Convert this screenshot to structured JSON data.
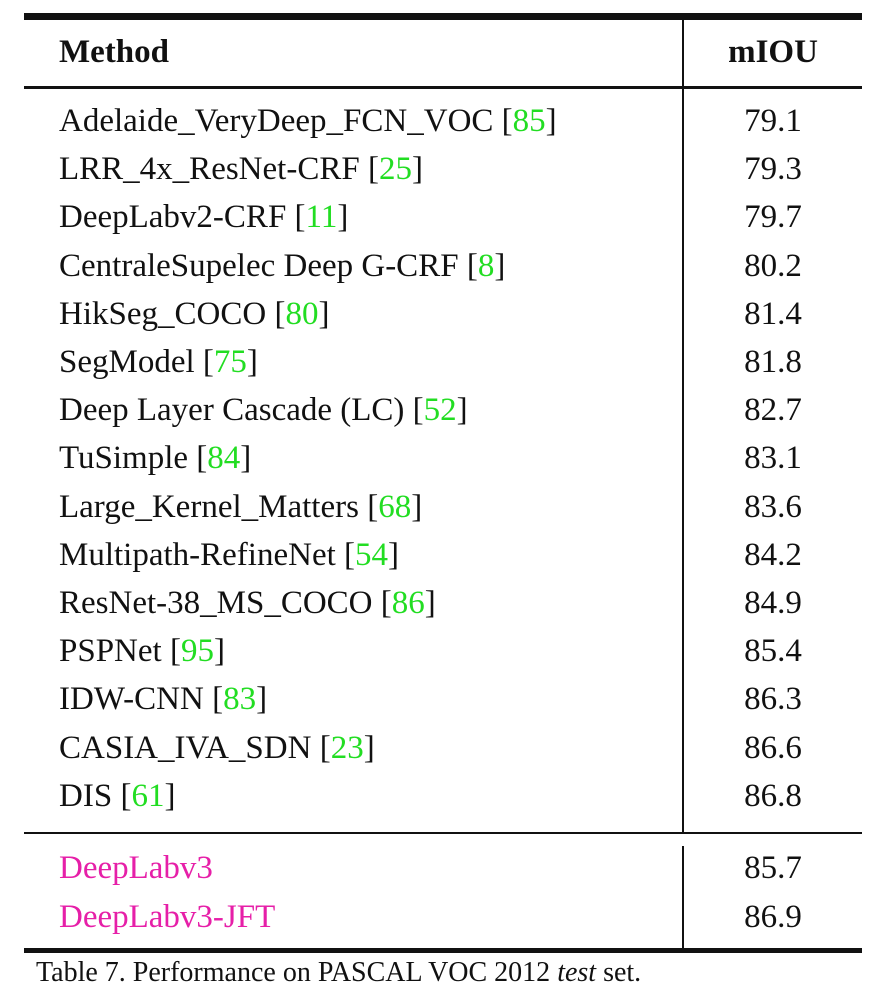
{
  "table": {
    "header": {
      "method": "Method",
      "score": "mIOU"
    },
    "rows": [
      {
        "method": "Adelaide_VeryDeep_FCN_VOC",
        "ref": "85",
        "score": "79.1"
      },
      {
        "method": "LRR_4x_ResNet-CRF",
        "ref": "25",
        "score": "79.3"
      },
      {
        "method": "DeepLabv2-CRF",
        "ref": "11",
        "score": "79.7"
      },
      {
        "method": "CentraleSupelec Deep G-CRF",
        "ref": "8",
        "score": "80.2"
      },
      {
        "method": "HikSeg_COCO",
        "ref": "80",
        "score": "81.4"
      },
      {
        "method": "SegModel",
        "ref": "75",
        "score": "81.8"
      },
      {
        "method": "Deep Layer Cascade (LC)",
        "ref": "52",
        "score": "82.7"
      },
      {
        "method": "TuSimple",
        "ref": "84",
        "score": "83.1"
      },
      {
        "method": "Large_Kernel_Matters",
        "ref": "68",
        "score": "83.6"
      },
      {
        "method": "Multipath-RefineNet",
        "ref": "54",
        "score": "84.2"
      },
      {
        "method": "ResNet-38_MS_COCO",
        "ref": "86",
        "score": "84.9"
      },
      {
        "method": "PSPNet",
        "ref": "95",
        "score": "85.4"
      },
      {
        "method": "IDW-CNN",
        "ref": "83",
        "score": "86.3"
      },
      {
        "method": "CASIA_IVA_SDN",
        "ref": "23",
        "score": "86.6"
      },
      {
        "method": "DIS",
        "ref": "61",
        "score": "86.8"
      }
    ],
    "ours": [
      {
        "method": "DeepLabv3",
        "score": "85.7"
      },
      {
        "method": "DeepLabv3-JFT",
        "score": "86.9"
      }
    ]
  },
  "caption": {
    "prefix": "Table 7. Performance on PASCAL VOC 2012 ",
    "emph": "test",
    "suffix": " set."
  },
  "colors": {
    "reference_link": "#22dd22",
    "our_method": "#e61fa8",
    "rules": "#111111"
  }
}
